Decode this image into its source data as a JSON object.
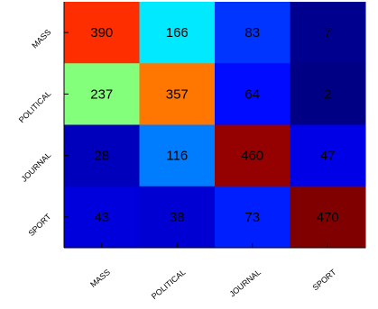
{
  "chart_data": {
    "type": "heatmap",
    "title": "",
    "xlabel": "",
    "ylabel": "",
    "x_categories": [
      "MASS",
      "POLITICAL",
      "JOURNAL",
      "SPORT"
    ],
    "y_categories": [
      "MASS",
      "POLITICAL",
      "JOURNAL",
      "SPORT"
    ],
    "values": [
      [
        390,
        166,
        83,
        7
      ],
      [
        237,
        357,
        64,
        2
      ],
      [
        28,
        116,
        460,
        47
      ],
      [
        43,
        38,
        73,
        470
      ]
    ],
    "colormap": "jet",
    "value_range": [
      0,
      470
    ],
    "grid": false,
    "legend": "none",
    "colors": {
      "cell_text": "#000000",
      "axis": "#000000",
      "background": "#ffffff"
    }
  }
}
